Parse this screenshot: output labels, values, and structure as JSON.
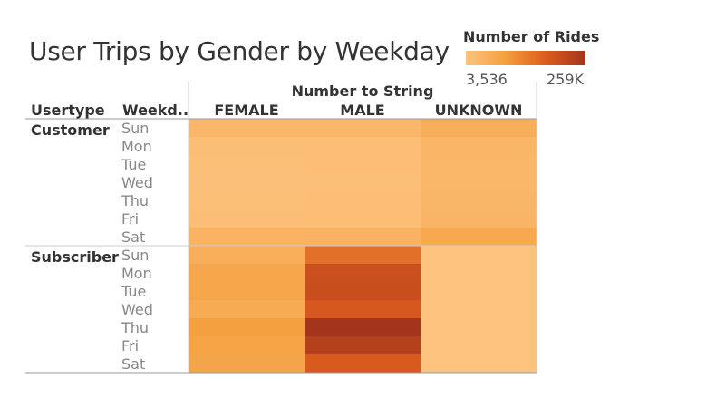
{
  "chart_data": {
    "type": "heatmap",
    "title": "User Trips by Gender by Weekday",
    "column_group_label": "Number to String",
    "row_headers": [
      "Usertype",
      "Weekd.."
    ],
    "columns": [
      "FEMALE",
      "MALE",
      "UNKNOWN"
    ],
    "row_groups": [
      {
        "name": "Customer",
        "weekdays": [
          "Sun",
          "Mon",
          "Tue",
          "Wed",
          "Thu",
          "Fri",
          "Sat"
        ],
        "values": [
          [
            30000,
            31000,
            55000
          ],
          [
            16000,
            17000,
            36000
          ],
          [
            12000,
            13000,
            32000
          ],
          [
            10000,
            11000,
            30000
          ],
          [
            12000,
            13000,
            33000
          ],
          [
            15000,
            16000,
            38000
          ],
          [
            40000,
            42000,
            65000
          ]
        ]
      },
      {
        "name": "Subscriber",
        "weekdays": [
          "Sun",
          "Mon",
          "Tue",
          "Wed",
          "Thu",
          "Fri",
          "Sat"
        ],
        "values": [
          [
            55000,
            150000,
            3536
          ],
          [
            70000,
            200000,
            3536
          ],
          [
            72000,
            205000,
            3536
          ],
          [
            62000,
            185000,
            3536
          ],
          [
            88000,
            259000,
            3536
          ],
          [
            82000,
            235000,
            3536
          ],
          [
            75000,
            180000,
            3536
          ]
        ]
      }
    ],
    "legend": {
      "title": "Number of Rides",
      "min": 3536,
      "max": 259000,
      "min_label": "3,536",
      "max_label": "259K",
      "colors": [
        "#fdc27e",
        "#f4a03f",
        "#dd5d1f",
        "#a4341b"
      ]
    }
  }
}
